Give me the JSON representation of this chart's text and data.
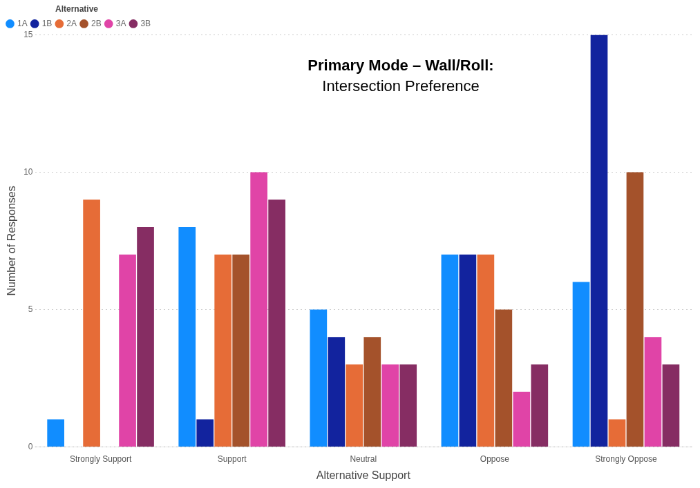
{
  "chart_data": {
    "type": "bar",
    "title": "Primary Mode – Wall/Roll:",
    "subtitle": "Intersection Preference",
    "xlabel": "Alternative Support",
    "ylabel": "Number of Responses",
    "legend_title": "Alternative",
    "categories": [
      "Strongly Support",
      "Support",
      "Neutral",
      "Oppose",
      "Strongly Oppose"
    ],
    "series": [
      {
        "name": "1A",
        "color": "#118dff",
        "values": [
          1,
          8,
          5,
          7,
          6
        ]
      },
      {
        "name": "1B",
        "color": "#12239e",
        "values": [
          0,
          1,
          4,
          7,
          15
        ]
      },
      {
        "name": "2A",
        "color": "#e66c37",
        "values": [
          9,
          7,
          3,
          7,
          1
        ]
      },
      {
        "name": "2B",
        "color": "#a4522b",
        "values": [
          0,
          7,
          4,
          5,
          10
        ]
      },
      {
        "name": "3A",
        "color": "#e044a7",
        "values": [
          7,
          10,
          3,
          2,
          4
        ]
      },
      {
        "name": "3B",
        "color": "#862d63",
        "values": [
          8,
          9,
          3,
          3,
          3
        ]
      }
    ],
    "ylim": [
      0,
      15
    ],
    "yticks": [
      0,
      5,
      10,
      15
    ],
    "grid": "y",
    "legend": "top left"
  }
}
